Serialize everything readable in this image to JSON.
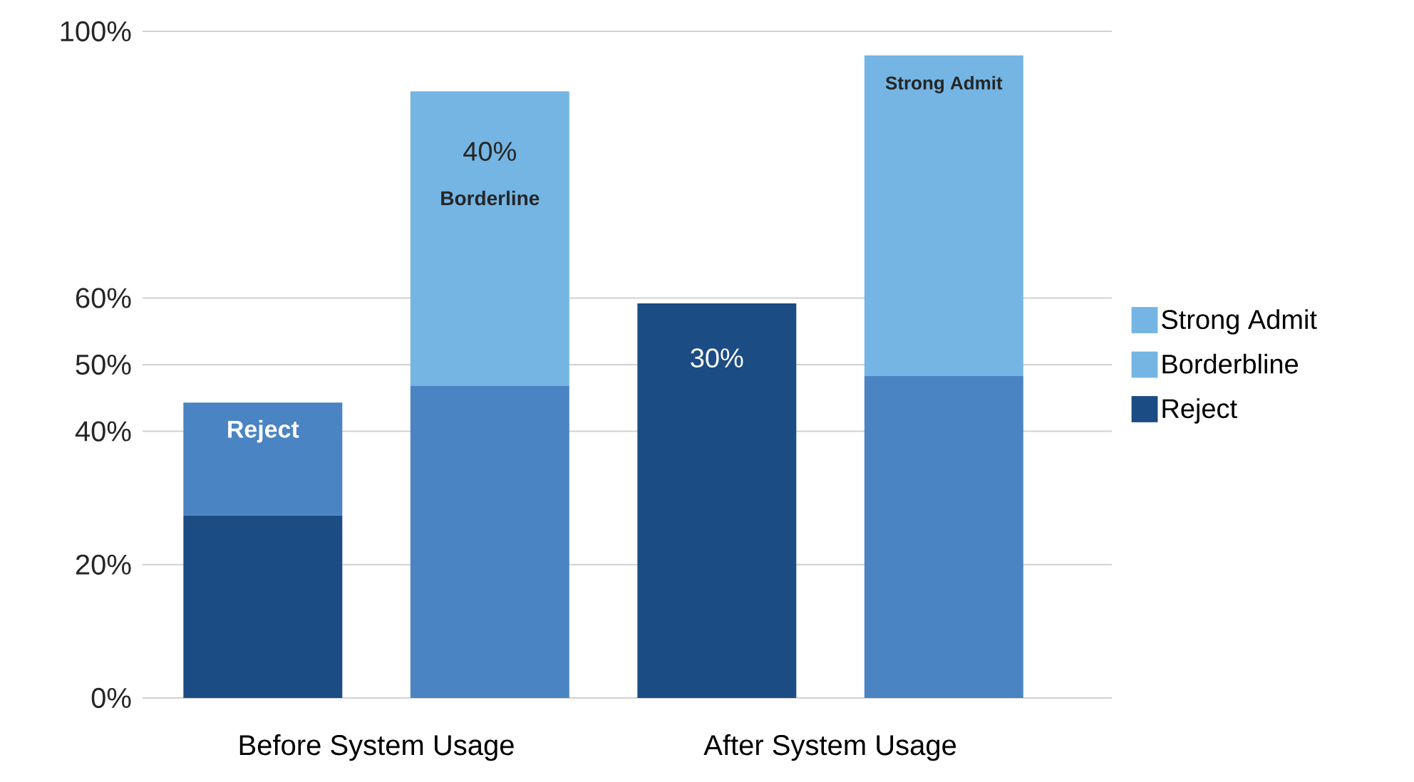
{
  "chart_data": {
    "type": "bar",
    "stacked": true,
    "grid": "y",
    "legend": "right",
    "categories": [
      null,
      null,
      null,
      null
    ],
    "ylim": [
      0,
      100
    ],
    "yticks": [
      {
        "value": 0,
        "label": "0%"
      },
      {
        "value": 20,
        "label": "20%"
      },
      {
        "value": 40,
        "label": "40%"
      },
      {
        "value": 50,
        "label": "50%"
      },
      {
        "value": 60,
        "label": "60%"
      },
      {
        "value": 100,
        "label": "100%"
      }
    ],
    "series": [
      {
        "name": "Reject",
        "color": "#1c4c84",
        "values": [
          27.4,
          null,
          59.2,
          null
        ]
      },
      {
        "color": "#4a84c2",
        "values": [
          16.9,
          46.8,
          null,
          48.3
        ]
      },
      {
        "name": "Borderbline",
        "color": "#74b5e3",
        "values": [
          null,
          44.2,
          null,
          null
        ]
      },
      {
        "name": "Strong Admit",
        "color": "#74b5e3",
        "values": [
          null,
          null,
          null,
          48.1
        ]
      }
    ],
    "annotations": [
      "Reject",
      "40%",
      "Borderline",
      "30%",
      "Strong Admit",
      "Before System Usage",
      "After System Usage"
    ]
  }
}
